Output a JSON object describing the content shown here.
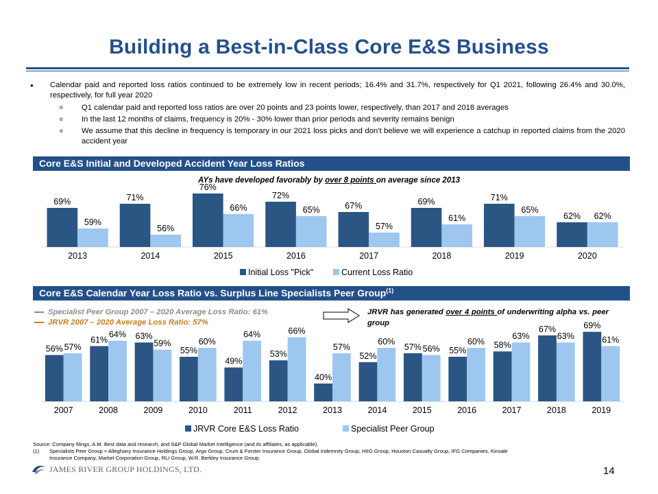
{
  "title": "Building a Best-in-Class Core E&S Business",
  "bullets": {
    "main": "Calendar paid and reported loss ratios continued to be extremely low in recent periods; 16.4% and 31.7%, respectively for Q1 2021, following 26.4% and 30.0%, respectively, for full year 2020",
    "sub": [
      "Q1 calendar paid and reported loss ratios are over 20 points and 23 points lower, respectively, than 2017 and 2018 averages",
      "In the last 12 months of claims, frequency is 20% - 30% lower than prior periods and severity remains benign",
      "We assume that this decline in frequency is temporary in our 2021 loss picks and don't believe we will experience a catchup in reported claims from the 2020 accident year"
    ]
  },
  "section1": {
    "header": "Core E&S Initial  and Developed Accident Year Loss Ratios",
    "note_pre": "AYs have developed favorably by ",
    "note_u": "over 8 points ",
    "note_post": "on average since 2013"
  },
  "section2": {
    "header": "Core E&S Calendar Year Loss Ratio vs. Surplus Line Specialists Peer Group",
    "header_sup": "(1)",
    "legend_peer": "Specialist Peer Group 2007 – 2020 Average Loss Ratio: 61%",
    "legend_jrvr": "JRVR 2007 – 2020 Average Loss Ratio: 57%",
    "note_pre": "JRVR has generated ",
    "note_u": "over 4 points ",
    "note_post": "of underwriting alpha vs. peer group"
  },
  "chart_data": [
    {
      "type": "bar",
      "categories": [
        "2013",
        "2014",
        "2015",
        "2016",
        "2017",
        "2018",
        "2019",
        "2020"
      ],
      "series": [
        {
          "name": "Initial Loss \"Pick\"",
          "values": [
            69,
            71,
            76,
            72,
            67,
            69,
            71,
            62
          ],
          "labels": [
            "69%",
            "71%",
            "76%",
            "72%",
            "67%",
            "69%",
            "71%",
            "62%"
          ]
        },
        {
          "name": "Current Loss Ratio",
          "values": [
            59,
            56,
            66,
            65,
            57,
            61,
            65,
            62
          ],
          "labels": [
            "59%",
            "56%",
            "66%",
            "65%",
            "57%",
            "61%",
            "65%",
            "62%"
          ]
        }
      ],
      "title": "",
      "xlabel": "",
      "ylabel": "",
      "ylim": [
        50,
        80
      ],
      "legend": "bottom"
    },
    {
      "type": "bar",
      "categories": [
        "2007",
        "2008",
        "2009",
        "2010",
        "2011",
        "2012",
        "2013",
        "2014",
        "2015",
        "2016",
        "2017",
        "2018",
        "2019"
      ],
      "series": [
        {
          "name": "JRVR Core E&S Loss Ratio",
          "values": [
            56,
            61,
            63,
            55,
            49,
            53,
            40,
            52,
            57,
            55,
            58,
            67,
            69
          ],
          "labels": [
            "56%",
            "61%",
            "63%",
            "55%",
            "49%",
            "53%",
            "40%",
            "52%",
            "57%",
            "55%",
            "58%",
            "67%",
            "69%"
          ]
        },
        {
          "name": "Specialist Peer Group",
          "values": [
            57,
            64,
            59,
            60,
            64,
            66,
            57,
            60,
            56,
            60,
            63,
            63,
            61
          ],
          "labels": [
            "57%",
            "64%",
            "59%",
            "60%",
            "64%",
            "66%",
            "57%",
            "60%",
            "56%",
            "60%",
            "63%",
            "63%",
            "61%"
          ]
        }
      ],
      "title": "",
      "xlabel": "",
      "ylabel": "",
      "ylim": [
        30,
        70
      ],
      "legend": "bottom"
    }
  ],
  "colors": {
    "navy": "#24508a",
    "bar_dark": "#2b5583",
    "bar_light": "#9dc7ef",
    "legend_peer": "#8c8c8c",
    "legend_jrvr": "#c67b1c"
  },
  "source": "Source: Company filings, A.M. Best data and research, and S&P Global Market Intelligence (and its affiliates, as applicable).",
  "footnote": {
    "num": "(1)",
    "text": "Specialists Peer Group = Alleghany Insurance Holdings Group, Argo Group, Crum & Forster Insurance Group, Global Indemnity Group, HIIG Group, Houston Casualty Group, IFG Companies, Kinsale Insurance Company, Markel Corporation Group, RLI Group, W.R. Berkley Insurance Group."
  },
  "logo_text": "JAMES RIVER GROUP HOLDINGS, LTD.",
  "page_number": "14"
}
